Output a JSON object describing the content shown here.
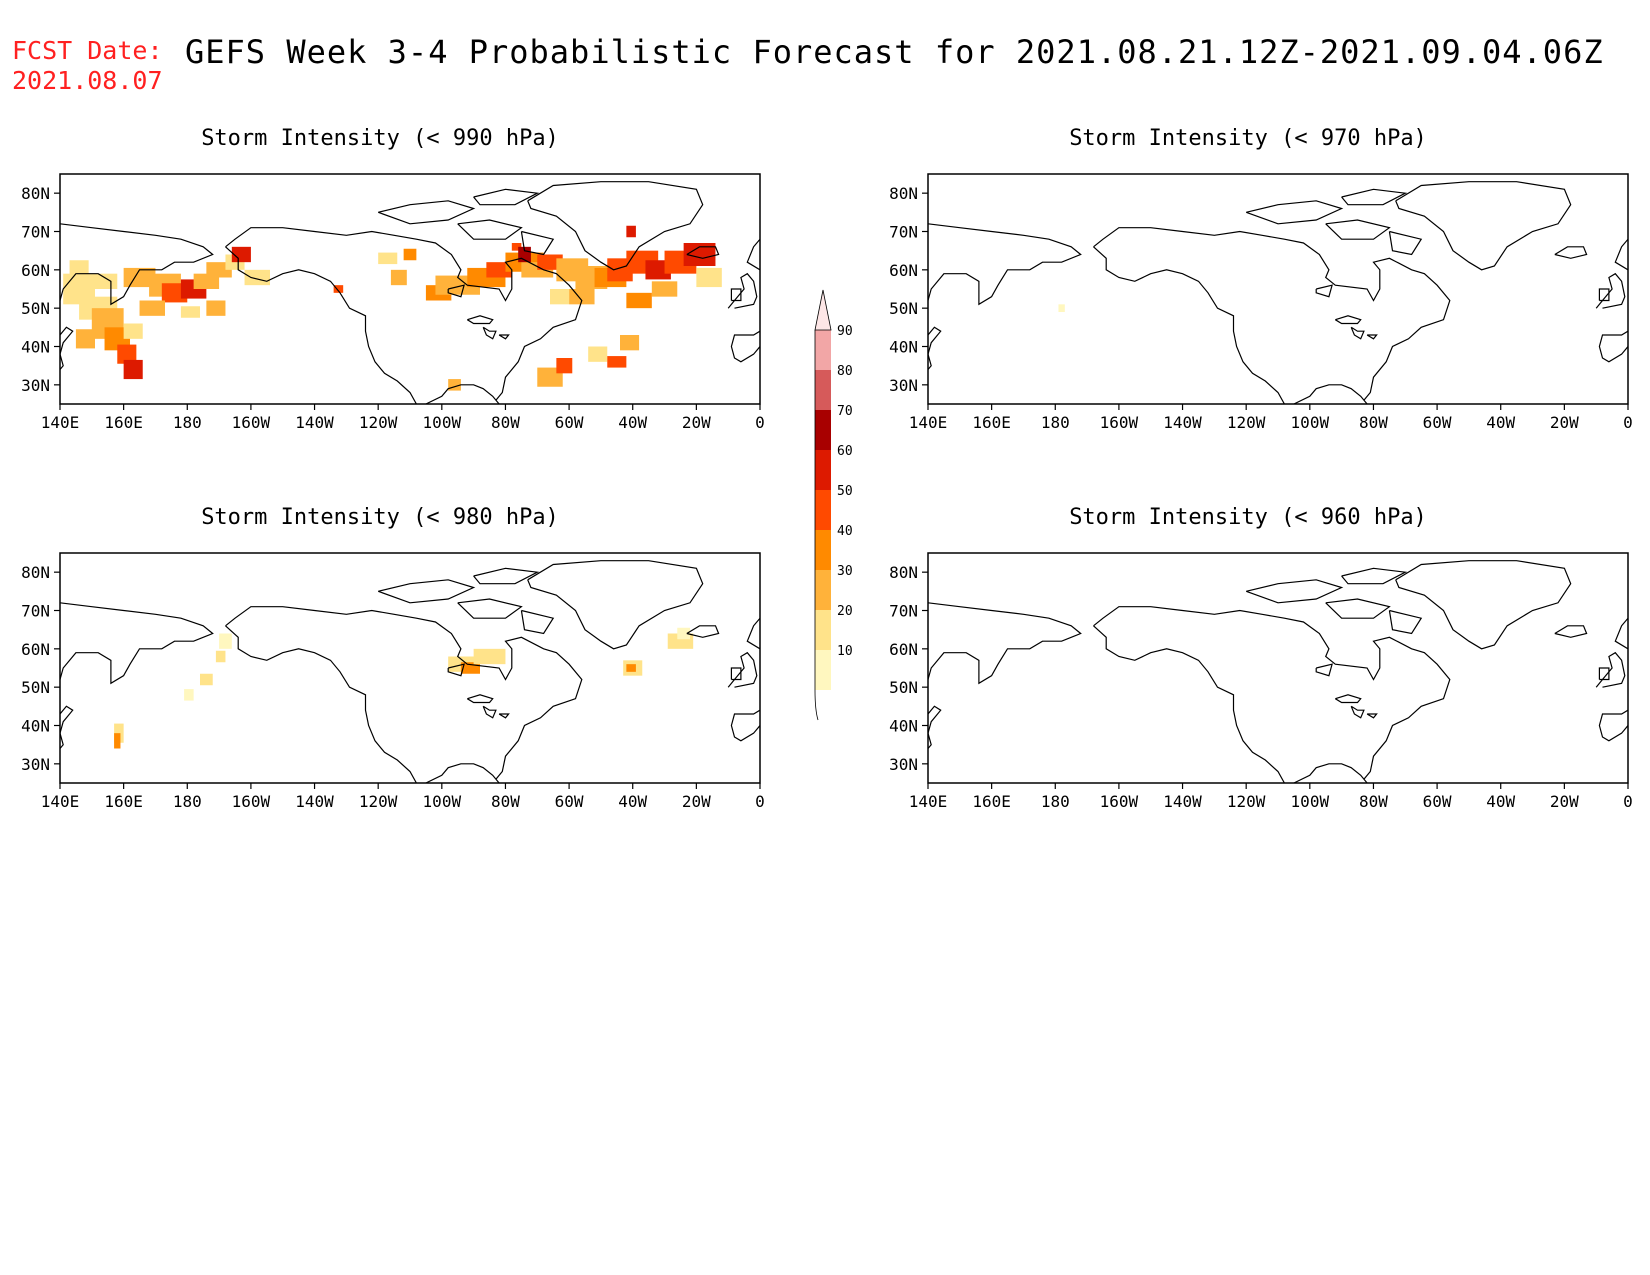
{
  "header": {
    "fcst_label": "FCST Date:",
    "fcst_date": "2021.08.07",
    "title": "GEFS Week 3-4 Probabilistic Forecast for 2021.08.21.12Z-2021.09.04.06Z"
  },
  "axes": {
    "lat_labels": [
      "80N",
      "70N",
      "60N",
      "50N",
      "40N",
      "30N"
    ],
    "lon_labels": [
      "140E",
      "160E",
      "180",
      "160W",
      "140W",
      "120W",
      "100W",
      "80W",
      "60W",
      "40W",
      "20W",
      "0"
    ]
  },
  "panels": [
    {
      "title": "Storm Intensity (< 990 hPa)"
    },
    {
      "title": "Storm Intensity (< 970 hPa)"
    },
    {
      "title": "Storm Intensity (< 980 hPa)"
    },
    {
      "title": "Storm Intensity (< 960 hPa)"
    }
  ],
  "colorbar": {
    "levels": [
      "10",
      "20",
      "30",
      "40",
      "50",
      "60",
      "70",
      "80",
      "90"
    ],
    "colors": [
      "#fff7bf",
      "#ffe38a",
      "#ffb23a",
      "#ff8a00",
      "#ff4a00",
      "#dd1a00",
      "#a80000",
      "#d65a5a",
      "#f2a6a6",
      "#fde6e6"
    ]
  }
}
